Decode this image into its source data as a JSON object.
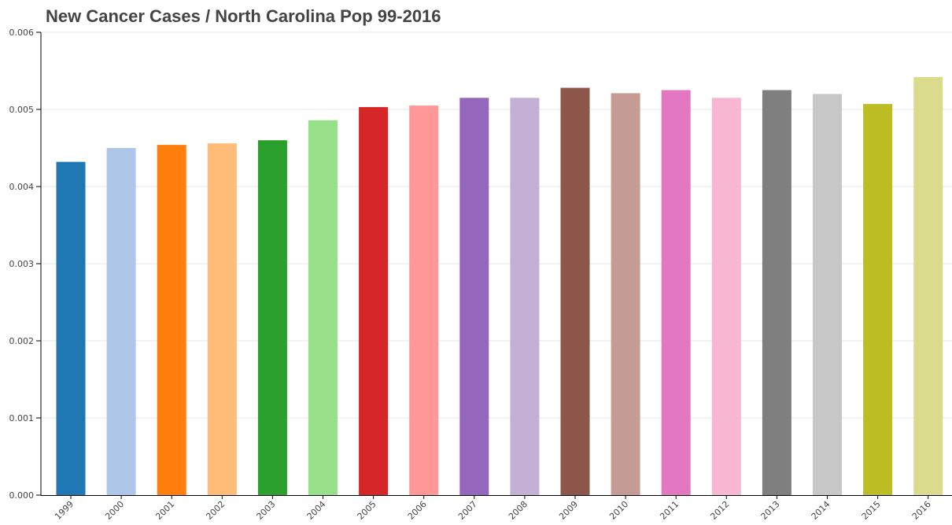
{
  "chart_data": {
    "type": "bar",
    "title": "New Cancer Cases / North Carolina Pop 99-2016",
    "xlabel": "",
    "ylabel": "",
    "categories": [
      "1999",
      "2000",
      "2001",
      "2002",
      "2003",
      "2004",
      "2005",
      "2006",
      "2007",
      "2008",
      "2009",
      "2010",
      "2011",
      "2012",
      "2013",
      "2014",
      "2015",
      "2016"
    ],
    "values": [
      0.00432,
      0.0045,
      0.00454,
      0.00456,
      0.0046,
      0.00486,
      0.00503,
      0.00505,
      0.00515,
      0.00515,
      0.00528,
      0.00521,
      0.00525,
      0.00515,
      0.00525,
      0.0052,
      0.00507,
      0.00542
    ],
    "colors": [
      "#1f77b4",
      "#aec7e8",
      "#ff7f0e",
      "#ffbb78",
      "#2ca02c",
      "#98df8a",
      "#d62728",
      "#ff9896",
      "#9467bd",
      "#c5b0d5",
      "#8c564b",
      "#c49c94",
      "#e377c2",
      "#f7b6d2",
      "#7f7f7f",
      "#c7c7c7",
      "#bcbd22",
      "#dbdb8d"
    ],
    "ylim": [
      0,
      0.006
    ],
    "yticks": [
      "0.000",
      "0.001",
      "0.002",
      "0.003",
      "0.004",
      "0.005",
      "0.006"
    ],
    "grid": true,
    "legend": "none"
  }
}
